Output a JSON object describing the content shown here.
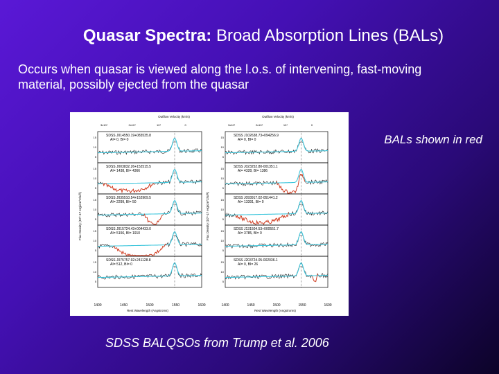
{
  "slide": {
    "title_bold": "Quasar Spectra:",
    "title_rest": " Broad Absorption Lines (BALs)",
    "body": "Occurs when quasar is viewed along the l.o.s. of intervening, fast-moving material, possibly ejected from the quasar",
    "note": "BALs shown in red",
    "caption": "SDSS BALQSOs from Trump et al. 2006"
  },
  "figure": {
    "top_axis_label": "Outflow Velocity (km/s)",
    "x_axis_label": "Rest Wavelength (Angstroms)",
    "y_axis_label": "Flux Density (10^-17 erg/cm^2/s/Å)",
    "left_x_ticks": [
      "1400",
      "1450",
      "1500",
      "1550",
      "1600"
    ],
    "right_x_ticks": [
      "1400",
      "1450",
      "1500",
      "1550",
      "1600"
    ],
    "top_ticks": [
      "3x10⁴",
      "2x10⁴",
      "10⁴",
      "0"
    ],
    "left_panels": [
      {
        "id": "SDSS J014550.19+083535.8",
        "indices": "AI= 0, BI= 0"
      },
      {
        "id": "SDSS J003832.26+152515.5",
        "indices": "AI= 1438, BI= 4366"
      },
      {
        "id": "SDSS J035510.54+152909.5",
        "indices": "AI= 2299, BI= 50"
      },
      {
        "id": "SDSS J015724.43+004433.0",
        "indices": "AI= 5156, BI= 1910"
      },
      {
        "id": "SDSS J075757.92+241128.8",
        "indices": "AI= 512, BI= 0"
      }
    ],
    "right_panels": [
      {
        "id": "SDSS J102638.73+094256.9",
        "indices": "AI= 0, BI= 0"
      },
      {
        "id": "SDSS J023252.80-001351.1",
        "indices": "AI= 4328, BI= 1386"
      },
      {
        "id": "SDSS J093917.02-051441.2",
        "indices": "AI= 13391, BI= 0"
      },
      {
        "id": "SDSS J131504.53+000551.7",
        "indices": "AI= 3785, BI= 0"
      },
      {
        "id": "SDSS J203724.05-002036.1",
        "indices": "AI= 0, BI= 26"
      }
    ],
    "colors": {
      "observed": "#1a1a1a",
      "continuum": "#3ec6dc",
      "bal": "#d83a1c"
    }
  }
}
